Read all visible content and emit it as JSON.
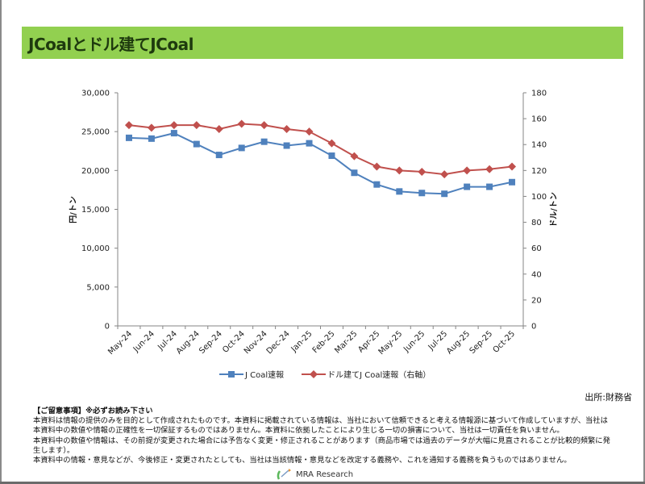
{
  "title": "JCoalとドル建てJCoal",
  "source": "出所:財務省",
  "disclaimer": {
    "heading": "【ご留意事項】※必ずお読み下さい",
    "lines": [
      "本資料は情報の提供のみを目的として作成されたものです。本資料に掲載されている情報は、当社において信頼できると考える情報源に基づいて作成していますが、当社は本資料中の数値や情報の正確性を一切保証するものではありません。本資料に依拠したことにより生じる一切の損害について、当社は一切責任を負いません。",
      "本資料中の数値や情報は、その前提が変更された場合には予告なく変更・修正されることがあります（商品市場では過去のデータが大幅に見直されることが比較的頻繁に発生します）。",
      "本資料中の情報・意見などが、今後修正・変更されたとしても、当社は当該情報・意見などを改定する義務や、これを通知する義務を負うものではありません。"
    ]
  },
  "footer": {
    "logo_text": "MRA Research"
  },
  "colors": {
    "title_bar": "#92d050",
    "series_yen": "#4f81bd",
    "series_usd": "#c0504d"
  },
  "chart_data": {
    "type": "line",
    "title": "",
    "categories": [
      "May-24",
      "Jun-24",
      "Jul-24",
      "Aug-24",
      "Sep-24",
      "Oct-24",
      "Nov-24",
      "Dec-24",
      "Jan-25",
      "Feb-25",
      "Mar-25",
      "Apr-25",
      "May-25",
      "Jun-25",
      "Jul-25",
      "Aug-25",
      "Sep-25",
      "Oct-25"
    ],
    "series": [
      {
        "name": "J Coal速報",
        "axis": "left",
        "marker": "square",
        "color": "#4f81bd",
        "values": [
          24200,
          24100,
          24800,
          23400,
          22000,
          22900,
          23700,
          23200,
          23500,
          21900,
          19700,
          18200,
          17300,
          17100,
          17000,
          17900,
          17900,
          18500
        ]
      },
      {
        "name": "ドル建てJ Coal速報（右軸）",
        "axis": "right",
        "marker": "diamond",
        "color": "#c0504d",
        "values": [
          155,
          153,
          155,
          155,
          152,
          156,
          155,
          152,
          150,
          141,
          131,
          123,
          120,
          119,
          117,
          120,
          121,
          123
        ]
      }
    ],
    "ylabel_left": "円/トン",
    "ylabel_right": "ドル/トン",
    "ylim_left": [
      0,
      30000
    ],
    "yticks_left": [
      "0",
      "5,000",
      "10,000",
      "15,000",
      "20,000",
      "25,000",
      "30,000"
    ],
    "ylim_right": [
      0,
      180
    ],
    "yticks_right": [
      "0",
      "20",
      "40",
      "60",
      "80",
      "100",
      "120",
      "140",
      "160",
      "180"
    ],
    "grid": false,
    "legend_position": "bottom"
  }
}
